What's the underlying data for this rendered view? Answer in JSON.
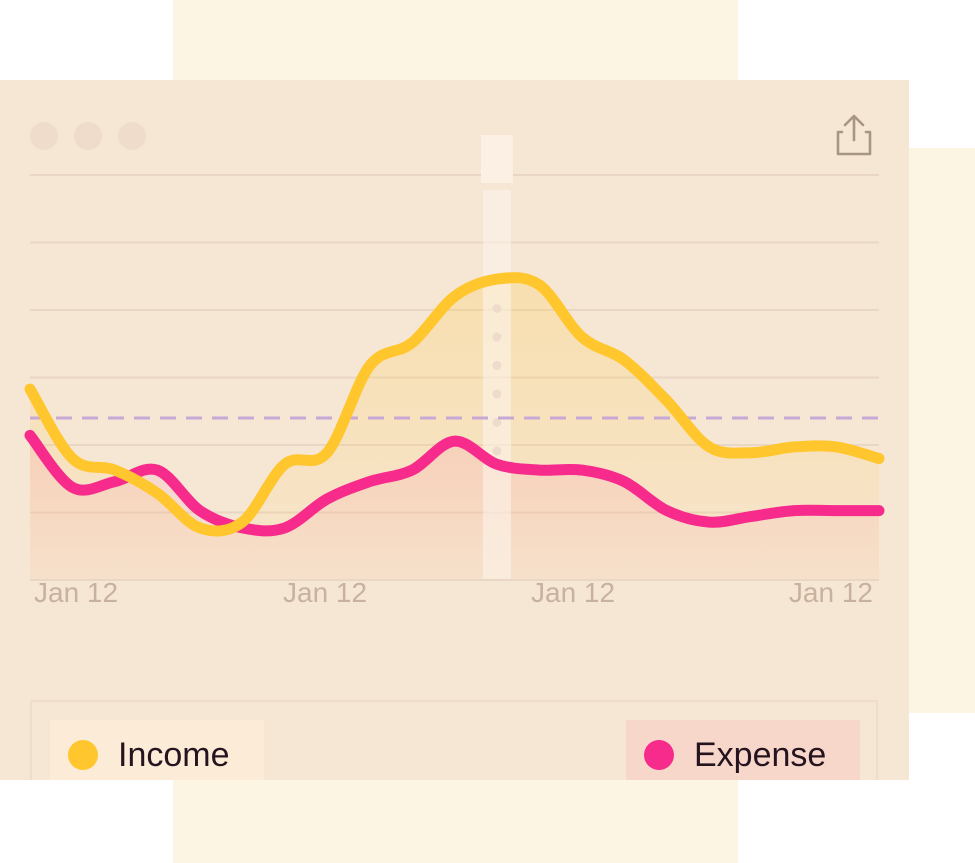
{
  "colors": {
    "income": "#ffc62e",
    "expense": "#f72b8c",
    "average_line": "#c8a9d6",
    "grid": "#ead6c4",
    "tick_label": "#c8b29f"
  },
  "toolbar": {
    "window_controls": [
      "dot",
      "dot",
      "dot"
    ],
    "share_icon": "share-icon"
  },
  "legend": {
    "income_label": "Income",
    "expense_label": "Expense"
  },
  "chart_data": {
    "type": "line",
    "title": "",
    "xlabel": "",
    "ylabel": "",
    "x_ticks": [
      "Jan 12",
      "Jan 12",
      "Jan 12",
      "Jan 12"
    ],
    "x": [
      0,
      0.5,
      1,
      1.5,
      2,
      2.5,
      3,
      3.5,
      4,
      4.5,
      5,
      5.5,
      6,
      6.5,
      7,
      7.5,
      8,
      8.5,
      9,
      9.5,
      10
    ],
    "ylim": [
      0,
      7
    ],
    "series": [
      {
        "name": "Income",
        "values": [
          3.3,
          2.1,
          1.9,
          1.5,
          0.9,
          1.0,
          2.0,
          2.2,
          3.7,
          4.1,
          4.9,
          5.2,
          5.1,
          4.2,
          3.8,
          3.1,
          2.3,
          2.2,
          2.3,
          2.3,
          2.1
        ]
      },
      {
        "name": "Expense",
        "values": [
          2.5,
          1.6,
          1.7,
          1.9,
          1.2,
          0.9,
          0.9,
          1.4,
          1.7,
          1.9,
          2.4,
          2.0,
          1.9,
          1.9,
          1.7,
          1.2,
          1.0,
          1.1,
          1.2,
          1.2,
          1.2
        ]
      }
    ],
    "average": 2.8,
    "highlight_index": 11,
    "grid": true,
    "legend_position": "bottom"
  }
}
